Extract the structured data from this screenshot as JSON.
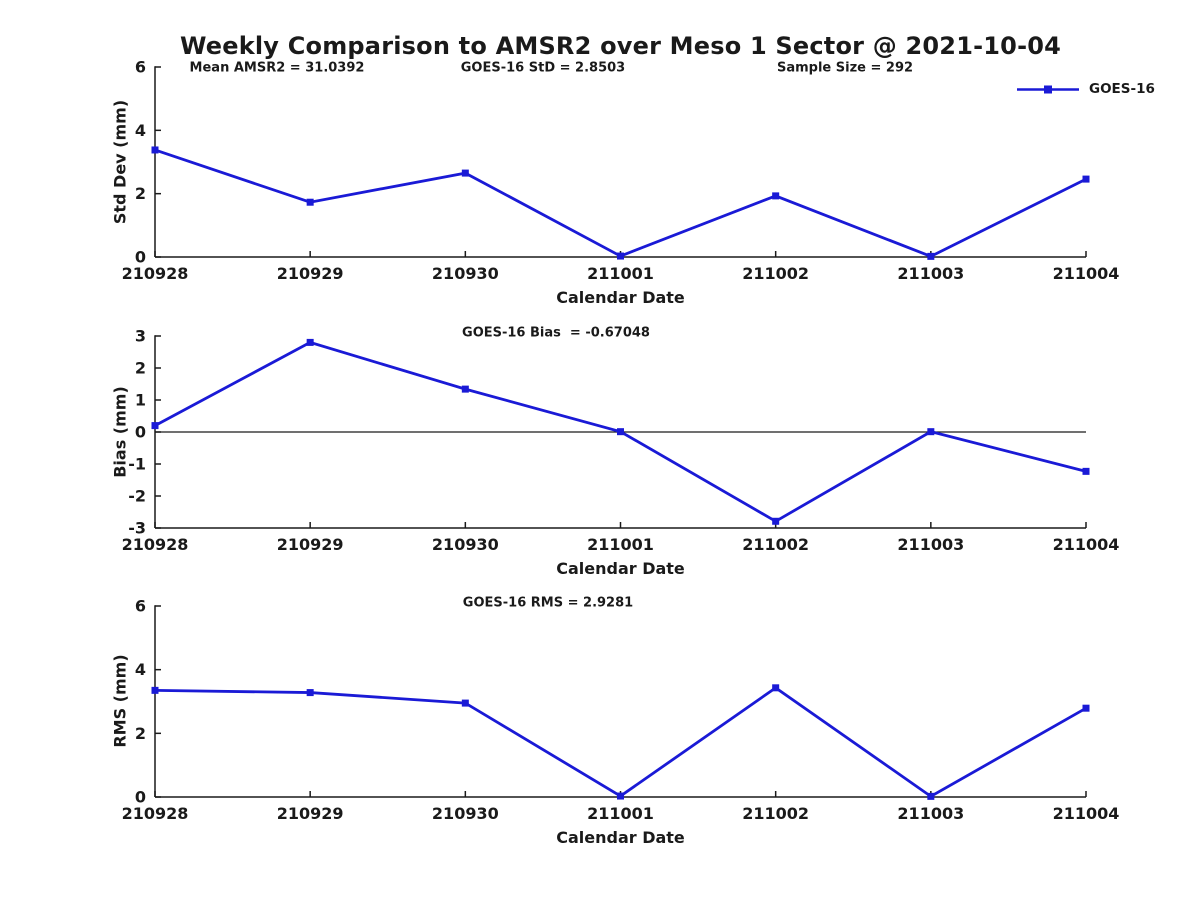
{
  "title": "Weekly Comparison to AMSR2 over Meso 1 Sector @ 2021-10-04",
  "annotations": {
    "mean_amsr2": "Mean AMSR2 = 31.0392",
    "goes16_std": "GOES-16 StD = 2.8503",
    "sample_size": "Sample Size = 292"
  },
  "legend": {
    "label": "GOES-16",
    "position": "top-right"
  },
  "style": {
    "line_color": "#1a1ad6",
    "axis_color": "#1a1a1a",
    "text_color": "#1a1a1a",
    "marker": "square"
  },
  "chart_data": [
    {
      "type": "line",
      "name": "std-dev",
      "series_name": "GOES-16",
      "title": "",
      "xlabel": "Calendar Date",
      "ylabel": "Std Dev (mm)",
      "categories": [
        "210928",
        "210929",
        "210930",
        "211001",
        "211002",
        "211003",
        "211004"
      ],
      "values": [
        3.38,
        1.73,
        2.65,
        0.03,
        1.93,
        0.02,
        2.46
      ],
      "ylim": [
        0,
        6
      ],
      "yticks": [
        6,
        4,
        2,
        0
      ],
      "zero_line": false,
      "grid": false
    },
    {
      "type": "line",
      "name": "bias",
      "series_name": "GOES-16",
      "title": "GOES-16 Bias  = -0.67048",
      "xlabel": "Calendar Date",
      "ylabel": "Bias (mm)",
      "categories": [
        "210928",
        "210929",
        "210930",
        "211001",
        "211002",
        "211003",
        "211004"
      ],
      "values": [
        0.2,
        2.8,
        1.34,
        0.01,
        -2.79,
        0.01,
        -1.23
      ],
      "ylim": [
        -3,
        3
      ],
      "yticks": [
        3,
        2,
        1,
        0,
        -1,
        -2,
        -3
      ],
      "zero_line": true,
      "grid": false
    },
    {
      "type": "line",
      "name": "rms",
      "series_name": "GOES-16",
      "title": "GOES-16 RMS = 2.9281",
      "xlabel": "Calendar Date",
      "ylabel": "RMS (mm)",
      "categories": [
        "210928",
        "210929",
        "210930",
        "211001",
        "211002",
        "211003",
        "211004"
      ],
      "values": [
        3.35,
        3.28,
        2.95,
        0.03,
        3.43,
        0.02,
        2.79
      ],
      "ylim": [
        0,
        6
      ],
      "yticks": [
        6,
        4,
        2,
        0
      ],
      "zero_line": false,
      "grid": false
    }
  ]
}
